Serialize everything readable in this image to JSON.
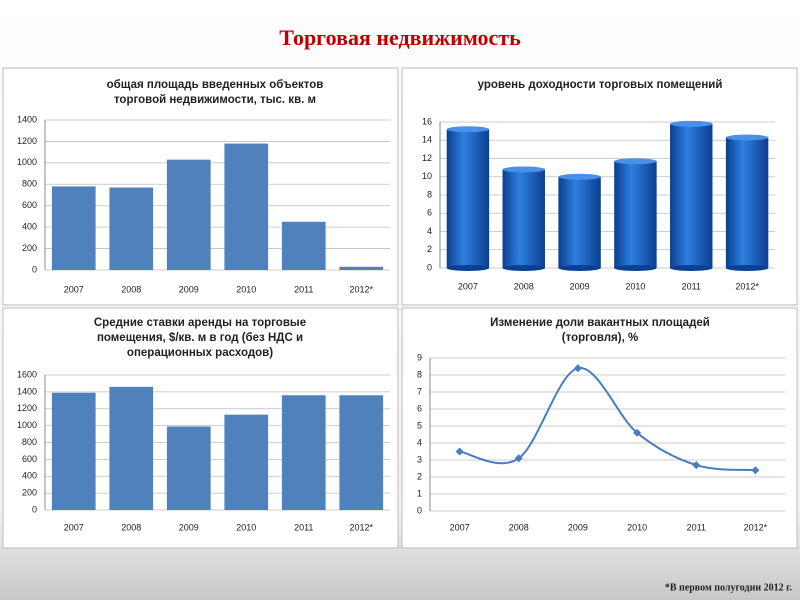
{
  "title": "Торговая недвижимость",
  "footnote": "*В первом полугодии 2012 г.",
  "chart_data": [
    {
      "type": "bar",
      "title": [
        "общая площадь введенных объектов",
        "торговой недвижимости, тыс. кв. м"
      ],
      "categories": [
        "2007",
        "2008",
        "2009",
        "2010",
        "2011",
        "2012*"
      ],
      "values": [
        780,
        770,
        1030,
        1180,
        450,
        30
      ],
      "color": "#4f81bd",
      "ylim": [
        0,
        1400
      ],
      "yticks": [
        0,
        200,
        400,
        600,
        800,
        1000,
        1200,
        1400
      ],
      "grid": true
    },
    {
      "type": "cylinder",
      "title": [
        "уровень доходности торговых помещений"
      ],
      "categories": [
        "2007",
        "2008",
        "2009",
        "2010",
        "2011",
        "2012*"
      ],
      "values": [
        15.2,
        10.8,
        10,
        11.7,
        15.8,
        14.3
      ],
      "color": "#1f5fbf",
      "ylim": [
        0,
        16
      ],
      "yticks": [
        0,
        2,
        4,
        6,
        8,
        10,
        12,
        14,
        16
      ],
      "grid": true
    },
    {
      "type": "bar",
      "title": [
        "Средние ставки аренды на торговые",
        "помещения, $/кв. м в год (без НДС и",
        "операционных расходов)"
      ],
      "categories": [
        "2007",
        "2008",
        "2009",
        "2010",
        "2011",
        "2012*"
      ],
      "values": [
        1390,
        1460,
        990,
        1130,
        1360,
        1360
      ],
      "color": "#4f81bd",
      "ylim": [
        0,
        1600
      ],
      "yticks": [
        0,
        200,
        400,
        600,
        800,
        1000,
        1200,
        1400,
        1600
      ],
      "grid": true
    },
    {
      "type": "line",
      "title": [
        "Изменение доли вакантных площадей",
        "(торговля), %"
      ],
      "categories": [
        "2007",
        "2008",
        "2009",
        "2010",
        "2011",
        "2012*"
      ],
      "values": [
        3.5,
        3.1,
        8.4,
        4.6,
        2.7,
        2.4
      ],
      "color": "#4a7ebb",
      "ylim": [
        0,
        9
      ],
      "yticks": [
        0,
        1,
        2,
        3,
        4,
        5,
        6,
        7,
        8,
        9
      ],
      "grid": true
    }
  ]
}
